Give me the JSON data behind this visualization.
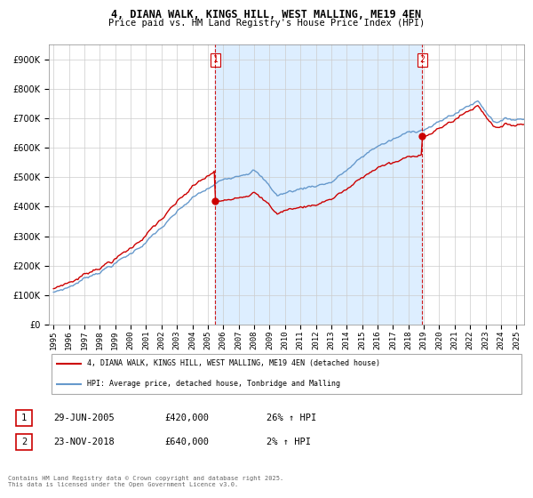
{
  "title_line1": "4, DIANA WALK, KINGS HILL, WEST MALLING, ME19 4EN",
  "title_line2": "Price paid vs. HM Land Registry's House Price Index (HPI)",
  "bg_color": "#ffffff",
  "plot_bg_color": "#ffffff",
  "shade_color": "#ddeeff",
  "grid_color": "#cccccc",
  "line1_color": "#cc0000",
  "line2_color": "#6699cc",
  "purchase1_date_x": 2005.49,
  "purchase1_price": 420000,
  "purchase2_date_x": 2018.9,
  "purchase2_price": 640000,
  "purchase1_date_str": "29-JUN-2005",
  "purchase1_price_str": "£420,000",
  "purchase1_hpi_str": "26% ↑ HPI",
  "purchase2_date_str": "23-NOV-2018",
  "purchase2_price_str": "£640,000",
  "purchase2_hpi_str": "2% ↑ HPI",
  "legend_line1": "4, DIANA WALK, KINGS HILL, WEST MALLING, ME19 4EN (detached house)",
  "legend_line2": "HPI: Average price, detached house, Tonbridge and Malling",
  "footer": "Contains HM Land Registry data © Crown copyright and database right 2025.\nThis data is licensed under the Open Government Licence v3.0.",
  "xmin": 1995,
  "xmax": 2025.5,
  "ymin": 0,
  "ymax": 950000
}
